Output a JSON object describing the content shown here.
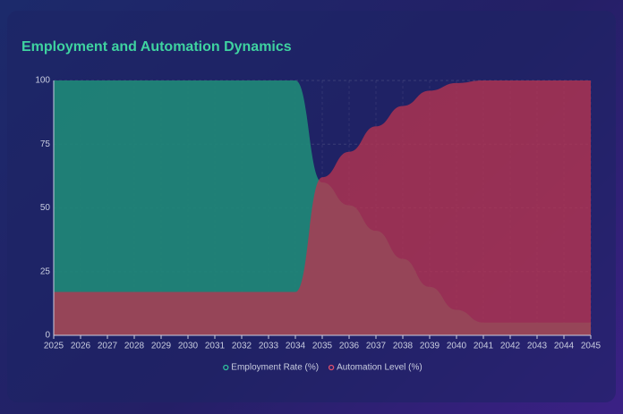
{
  "chart_data": {
    "type": "area",
    "title": "Employment and Automation Dynamics",
    "categories": [
      "2025",
      "2026",
      "2027",
      "2028",
      "2029",
      "2030",
      "2031",
      "2032",
      "2033",
      "2034",
      "2035",
      "2036",
      "2037",
      "2038",
      "2039",
      "2040",
      "2041",
      "2042",
      "2043",
      "2044",
      "2045"
    ],
    "series": [
      {
        "name": "Employment Rate (%)",
        "color": "#1f8a78",
        "values": [
          100,
          100,
          100,
          100,
          100,
          100,
          100,
          100,
          100,
          100,
          60,
          51,
          41,
          30,
          19,
          10,
          5,
          5,
          5,
          5,
          5
        ]
      },
      {
        "name": "Automation Level (%)",
        "color": "#b8354f",
        "values": [
          17,
          17,
          17,
          17,
          17,
          17,
          17,
          17,
          17,
          17,
          62,
          72,
          82,
          90,
          96,
          99,
          100,
          100,
          100,
          100,
          100
        ]
      }
    ],
    "ylim": [
      0,
      100
    ],
    "yticks": [
      0,
      25,
      50,
      75,
      100
    ],
    "grid": true,
    "legend": "bottom"
  }
}
